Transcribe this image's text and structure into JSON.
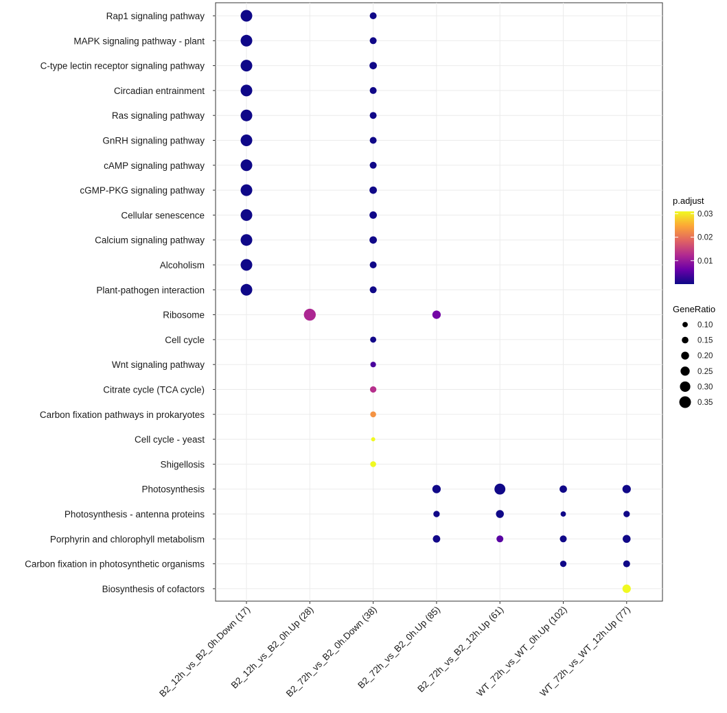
{
  "chart_data": {
    "type": "scatter",
    "subtype": "dotplot",
    "title": "",
    "xlabel": "",
    "ylabel": "",
    "categories": [
      "B2_12h_vs_B2_0h.Down (17)",
      "B2_12h_vs_B2_0h.Up (28)",
      "B2_72h_vs_B2_0h.Down (38)",
      "B2_72h_vs_B2_0h.Up (85)",
      "B2_72h_vs_B2_12h.Up (61)",
      "WT_72h_vs_WT_0h.Up (102)",
      "WT_72h_vs_WT_12h.Up (77)"
    ],
    "pathways": [
      "Rap1 signaling pathway",
      "MAPK signaling pathway - plant",
      "C-type lectin receptor signaling pathway",
      "Circadian entrainment",
      "Ras signaling pathway",
      "GnRH signaling pathway",
      "cAMP signaling pathway",
      "cGMP-PKG signaling pathway",
      "Cellular senescence",
      "Calcium signaling pathway",
      "Alcoholism",
      "Plant-pathogen interaction",
      "Ribosome",
      "Cell cycle",
      "Wnt signaling pathway",
      "Citrate cycle (TCA cycle)",
      "Carbon fixation pathways in prokaryotes",
      "Cell cycle - yeast",
      "Shigellosis",
      "Photosynthesis",
      "Photosynthesis - antenna proteins",
      "Porphyrin and chlorophyll metabolism",
      "Carbon fixation in photosynthetic organisms",
      "Biosynthesis of cofactors"
    ],
    "points": [
      {
        "pathway": 0,
        "group": 0,
        "gene_ratio": 0.35,
        "p_adjust": 0.0001
      },
      {
        "pathway": 1,
        "group": 0,
        "gene_ratio": 0.35,
        "p_adjust": 0.0001
      },
      {
        "pathway": 2,
        "group": 0,
        "gene_ratio": 0.35,
        "p_adjust": 0.0001
      },
      {
        "pathway": 3,
        "group": 0,
        "gene_ratio": 0.35,
        "p_adjust": 0.0001
      },
      {
        "pathway": 4,
        "group": 0,
        "gene_ratio": 0.35,
        "p_adjust": 0.0001
      },
      {
        "pathway": 5,
        "group": 0,
        "gene_ratio": 0.35,
        "p_adjust": 0.0001
      },
      {
        "pathway": 6,
        "group": 0,
        "gene_ratio": 0.35,
        "p_adjust": 0.0001
      },
      {
        "pathway": 7,
        "group": 0,
        "gene_ratio": 0.35,
        "p_adjust": 0.0001
      },
      {
        "pathway": 8,
        "group": 0,
        "gene_ratio": 0.35,
        "p_adjust": 0.0001
      },
      {
        "pathway": 9,
        "group": 0,
        "gene_ratio": 0.35,
        "p_adjust": 0.0001
      },
      {
        "pathway": 10,
        "group": 0,
        "gene_ratio": 0.35,
        "p_adjust": 0.0001
      },
      {
        "pathway": 11,
        "group": 0,
        "gene_ratio": 0.35,
        "p_adjust": 0.0001
      },
      {
        "pathway": 0,
        "group": 2,
        "gene_ratio": 0.16,
        "p_adjust": 0.0002
      },
      {
        "pathway": 1,
        "group": 2,
        "gene_ratio": 0.16,
        "p_adjust": 0.0002
      },
      {
        "pathway": 2,
        "group": 2,
        "gene_ratio": 0.18,
        "p_adjust": 0.0002
      },
      {
        "pathway": 3,
        "group": 2,
        "gene_ratio": 0.16,
        "p_adjust": 0.0002
      },
      {
        "pathway": 4,
        "group": 2,
        "gene_ratio": 0.16,
        "p_adjust": 0.0002
      },
      {
        "pathway": 5,
        "group": 2,
        "gene_ratio": 0.16,
        "p_adjust": 0.0002
      },
      {
        "pathway": 6,
        "group": 2,
        "gene_ratio": 0.16,
        "p_adjust": 0.0002
      },
      {
        "pathway": 7,
        "group": 2,
        "gene_ratio": 0.18,
        "p_adjust": 0.0002
      },
      {
        "pathway": 8,
        "group": 2,
        "gene_ratio": 0.18,
        "p_adjust": 0.0002
      },
      {
        "pathway": 9,
        "group": 2,
        "gene_ratio": 0.18,
        "p_adjust": 0.0002
      },
      {
        "pathway": 10,
        "group": 2,
        "gene_ratio": 0.16,
        "p_adjust": 0.0002
      },
      {
        "pathway": 11,
        "group": 2,
        "gene_ratio": 0.16,
        "p_adjust": 0.0002
      },
      {
        "pathway": 12,
        "group": 1,
        "gene_ratio": 0.36,
        "p_adjust": 0.012
      },
      {
        "pathway": 12,
        "group": 3,
        "gene_ratio": 0.22,
        "p_adjust": 0.007
      },
      {
        "pathway": 13,
        "group": 2,
        "gene_ratio": 0.13,
        "p_adjust": 0.0003
      },
      {
        "pathway": 14,
        "group": 2,
        "gene_ratio": 0.11,
        "p_adjust": 0.004
      },
      {
        "pathway": 15,
        "group": 2,
        "gene_ratio": 0.14,
        "p_adjust": 0.013
      },
      {
        "pathway": 16,
        "group": 2,
        "gene_ratio": 0.12,
        "p_adjust": 0.023
      },
      {
        "pathway": 17,
        "group": 2,
        "gene_ratio": 0.05,
        "p_adjust": 0.031
      },
      {
        "pathway": 18,
        "group": 2,
        "gene_ratio": 0.12,
        "p_adjust": 0.031
      },
      {
        "pathway": 19,
        "group": 3,
        "gene_ratio": 0.22,
        "p_adjust": 0.0002
      },
      {
        "pathway": 19,
        "group": 4,
        "gene_ratio": 0.32,
        "p_adjust": 0.0002
      },
      {
        "pathway": 19,
        "group": 5,
        "gene_ratio": 0.18,
        "p_adjust": 0.0002
      },
      {
        "pathway": 19,
        "group": 6,
        "gene_ratio": 0.22,
        "p_adjust": 0.0002
      },
      {
        "pathway": 20,
        "group": 3,
        "gene_ratio": 0.14,
        "p_adjust": 0.0002
      },
      {
        "pathway": 20,
        "group": 4,
        "gene_ratio": 0.2,
        "p_adjust": 0.0002
      },
      {
        "pathway": 20,
        "group": 5,
        "gene_ratio": 0.1,
        "p_adjust": 0.0002
      },
      {
        "pathway": 20,
        "group": 6,
        "gene_ratio": 0.14,
        "p_adjust": 0.0002
      },
      {
        "pathway": 21,
        "group": 3,
        "gene_ratio": 0.18,
        "p_adjust": 0.0003
      },
      {
        "pathway": 21,
        "group": 4,
        "gene_ratio": 0.16,
        "p_adjust": 0.005
      },
      {
        "pathway": 21,
        "group": 5,
        "gene_ratio": 0.16,
        "p_adjust": 0.0002
      },
      {
        "pathway": 21,
        "group": 6,
        "gene_ratio": 0.2,
        "p_adjust": 0.0002
      },
      {
        "pathway": 22,
        "group": 5,
        "gene_ratio": 0.14,
        "p_adjust": 0.0002
      },
      {
        "pathway": 22,
        "group": 6,
        "gene_ratio": 0.16,
        "p_adjust": 0.0002
      },
      {
        "pathway": 23,
        "group": 6,
        "gene_ratio": 0.22,
        "p_adjust": 0.031
      }
    ],
    "color_legend": {
      "title": "p.adjust",
      "ticks": [
        0.01,
        0.02,
        0.03
      ],
      "tick_labels": [
        "0.01",
        "0.02",
        "0.03"
      ],
      "range": [
        0.0,
        0.031
      ],
      "colors": [
        "#0d0887",
        "#6a00a8",
        "#b12a90",
        "#e16462",
        "#fca636",
        "#f0f921"
      ]
    },
    "size_legend": {
      "title": "GeneRatio",
      "values": [
        0.1,
        0.15,
        0.2,
        0.25,
        0.3,
        0.35
      ],
      "labels": [
        "0.10",
        "0.15",
        "0.20",
        "0.25",
        "0.30",
        "0.35"
      ]
    },
    "grid": true,
    "legend_position": "right"
  }
}
